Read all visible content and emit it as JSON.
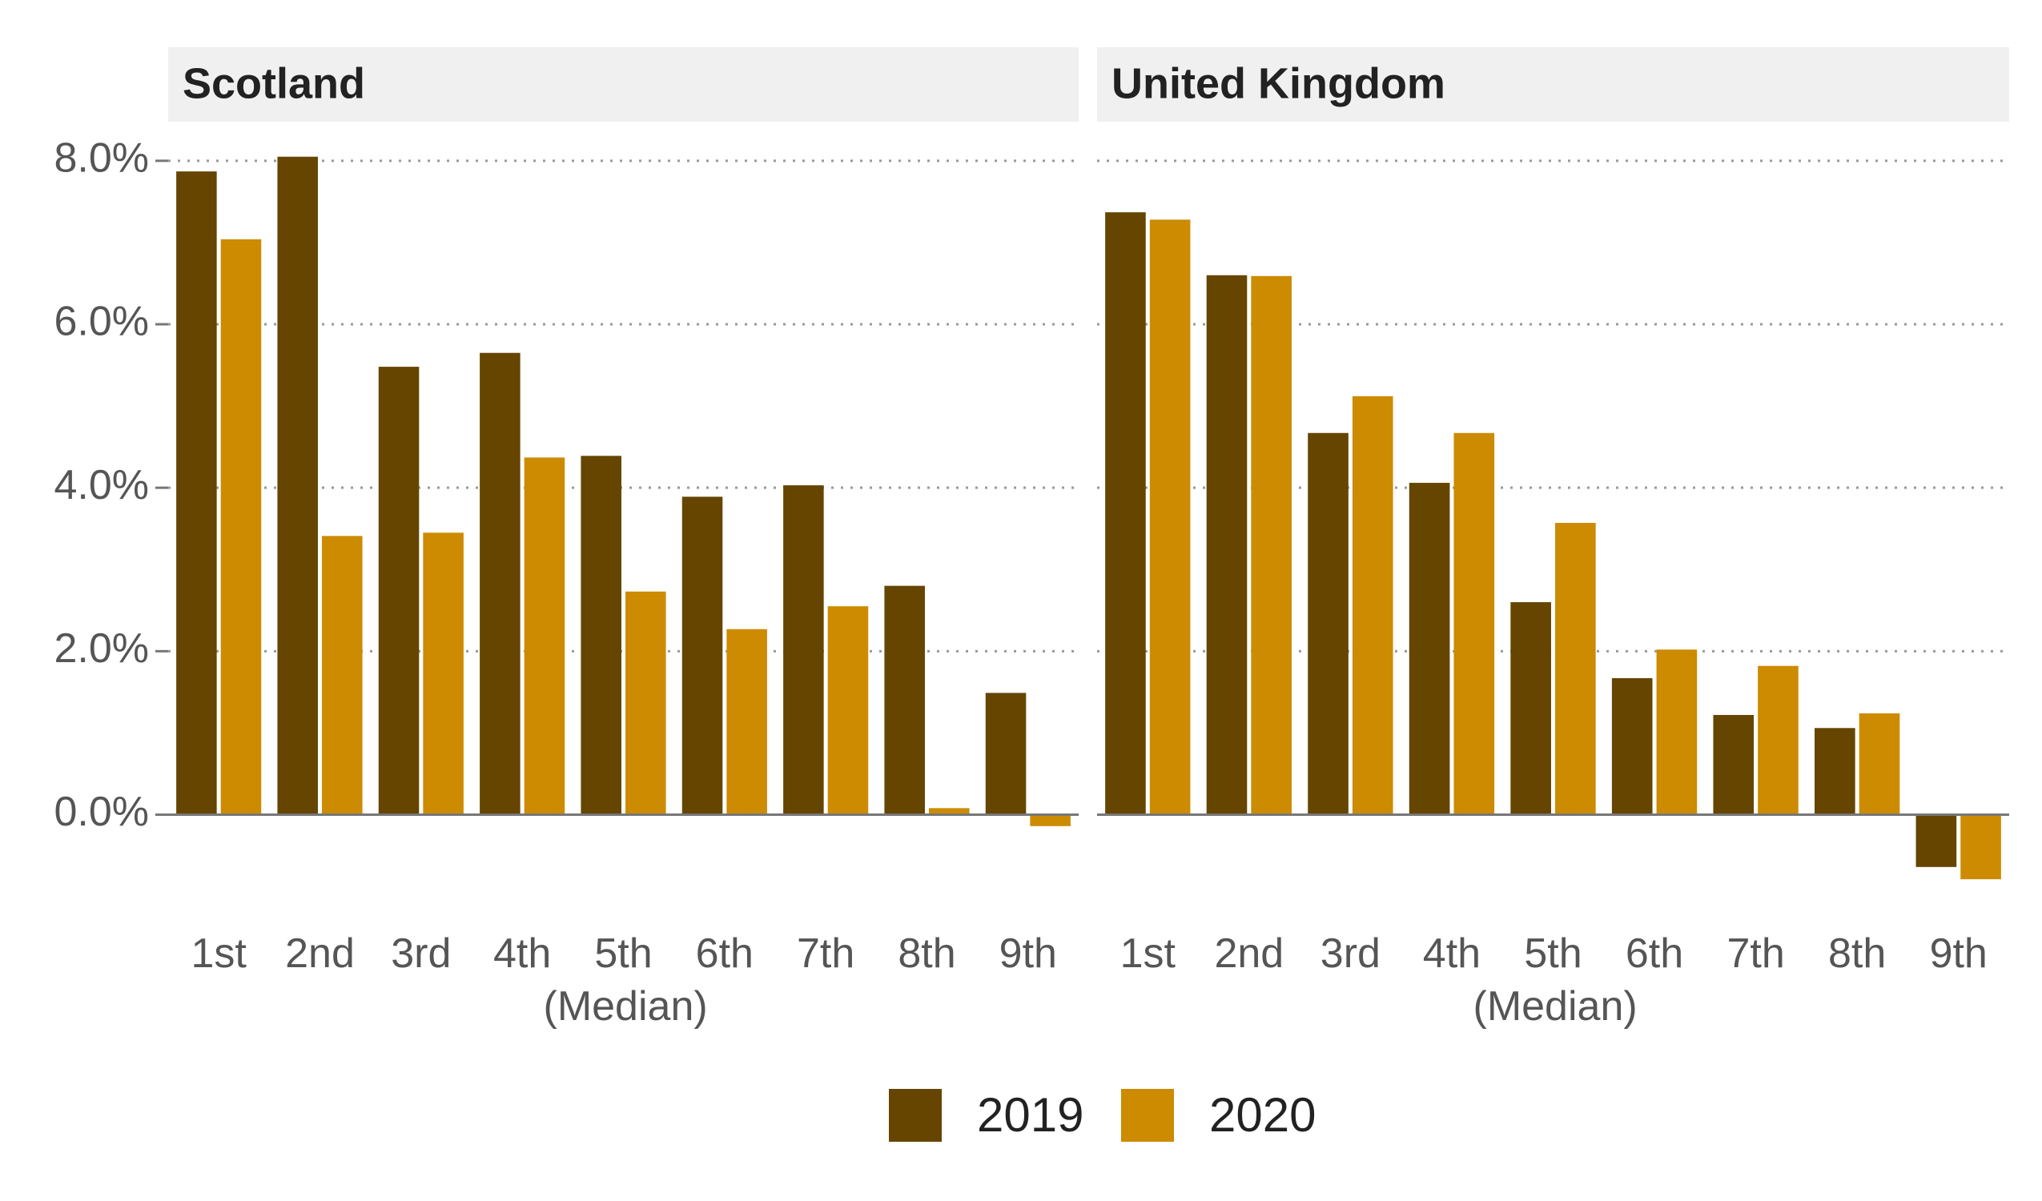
{
  "chart_data": [
    {
      "type": "bar",
      "title": "Scotland",
      "categories": [
        "1st",
        "2nd",
        "3rd",
        "4th",
        "5th\n(Median)",
        "6th",
        "7th",
        "8th",
        "9th"
      ],
      "series": [
        {
          "name": "2019",
          "color": "#654500",
          "values": [
            7.87,
            8.05,
            5.48,
            5.65,
            4.39,
            3.89,
            4.03,
            2.8,
            1.49
          ]
        },
        {
          "name": "2020",
          "color": "#cc8b00",
          "values": [
            7.04,
            3.41,
            3.45,
            4.37,
            2.73,
            2.27,
            2.55,
            0.08,
            -0.14
          ]
        }
      ],
      "ylim": [
        -1.2,
        8.4
      ],
      "yticks": [
        {
          "value": 0,
          "label": "0.0%"
        },
        {
          "value": 2,
          "label": "2.0%"
        },
        {
          "value": 4,
          "label": "4.0%"
        },
        {
          "value": 6,
          "label": "6.0%"
        },
        {
          "value": 8,
          "label": "8.0%"
        }
      ],
      "grid": true
    },
    {
      "type": "bar",
      "title": "United Kingdom",
      "categories": [
        "1st",
        "2nd",
        "3rd",
        "4th",
        "5th\n(Median)",
        "6th",
        "7th",
        "8th",
        "9th"
      ],
      "series": [
        {
          "name": "2019",
          "color": "#654500",
          "values": [
            7.37,
            6.6,
            4.67,
            4.06,
            2.6,
            1.67,
            1.22,
            1.06,
            -0.64
          ]
        },
        {
          "name": "2020",
          "color": "#cc8b00",
          "values": [
            7.28,
            6.59,
            5.12,
            4.67,
            3.57,
            2.02,
            1.82,
            1.24,
            -0.79
          ]
        }
      ],
      "ylim": [
        -1.2,
        8.4
      ],
      "yticks": [
        0,
        2,
        4,
        6,
        8
      ],
      "grid": true
    }
  ]
}
